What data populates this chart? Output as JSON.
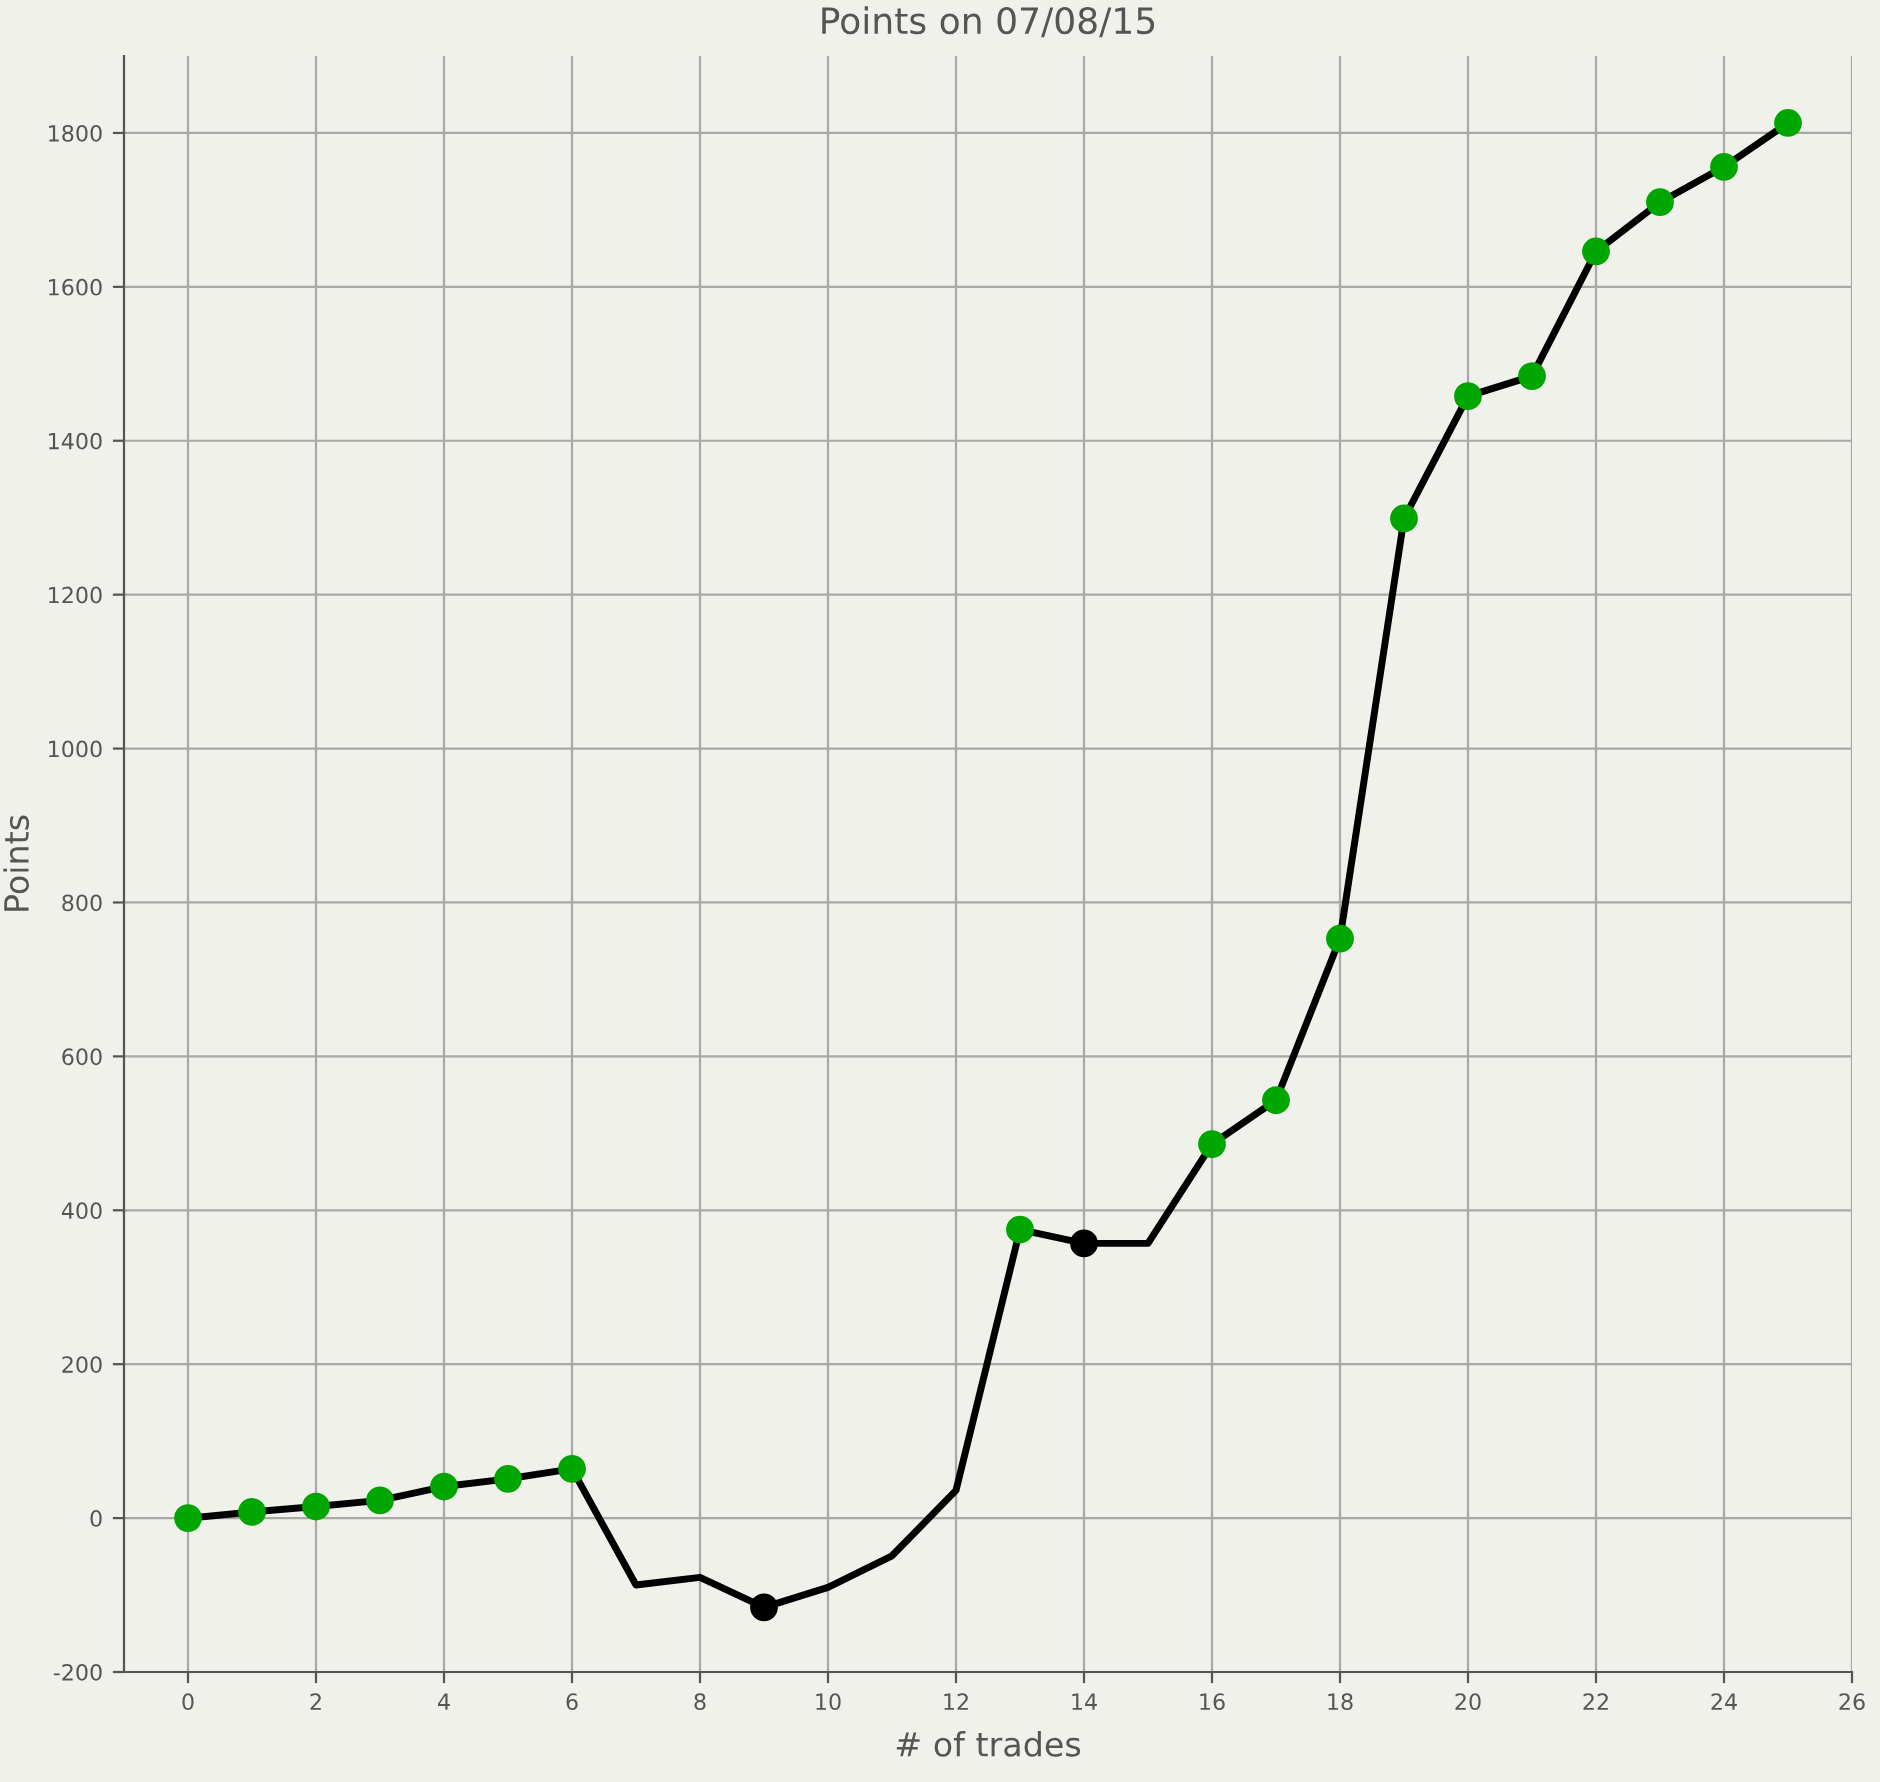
{
  "chart_data": {
    "type": "line",
    "title": "Points on 07/08/15",
    "xlabel": "# of trades",
    "ylabel": "Points",
    "x": [
      0,
      1,
      2,
      3,
      4,
      5,
      6,
      7,
      8,
      9,
      10,
      11,
      12,
      13,
      14,
      15,
      16,
      17,
      18,
      19,
      20,
      21,
      22,
      23,
      24,
      25
    ],
    "series": [
      {
        "color": "#000000",
        "values": [
          0,
          8,
          15,
          23,
          41,
          51,
          64,
          -87,
          -77,
          -116,
          -90,
          -49,
          36,
          375,
          357,
          357,
          486,
          543,
          753,
          1299,
          1458,
          1484,
          1646,
          1710,
          1756,
          1813
        ],
        "colors": [
          "#00a600",
          "#00a600",
          "#00a600",
          "#00a600",
          "#00a600",
          "#00a600",
          "#00a600",
          null,
          null,
          "#000000",
          null,
          null,
          null,
          "#00a600",
          "#000000",
          null,
          "#00a600",
          "#00a600",
          "#00a600",
          "#00a600",
          "#00a600",
          "#00a600",
          "#00a600",
          "#00a600",
          "#00a600",
          "#00a600"
        ]
      }
    ],
    "xlim": [
      -1,
      26
    ],
    "xticks": [
      0,
      2,
      4,
      6,
      8,
      10,
      12,
      14,
      16,
      18,
      20,
      22,
      24,
      26
    ],
    "ylim": [
      -200,
      1900
    ],
    "yticks": [
      -200,
      0,
      200,
      400,
      600,
      800,
      1000,
      1200,
      1400,
      1600,
      1800
    ],
    "grid": true,
    "marker": "circle",
    "line_style": "solid"
  }
}
